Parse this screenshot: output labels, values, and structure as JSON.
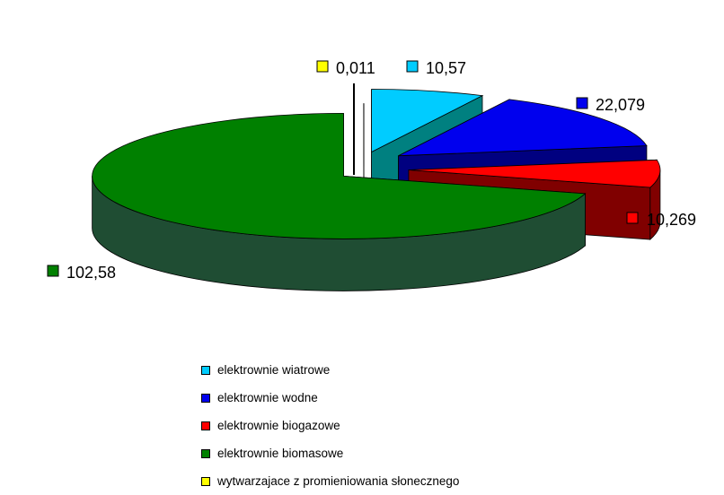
{
  "chart_data": {
    "type": "pie",
    "title": "",
    "categories": [
      "elektrownie wiatrowe",
      "elektrownie wodne",
      "elektrownie biogazowe",
      "elektrownie biomasowe",
      "wytwarzajace z promieniowania słonecznego"
    ],
    "values": [
      10.57,
      22.079,
      10.269,
      102.58,
      0.011
    ],
    "value_labels": [
      "10,57",
      "22,079",
      "10,269",
      "102,58",
      "0,011"
    ],
    "colors": [
      "#00ccff",
      "#0000ee",
      "#ff0000",
      "#008000",
      "#ffff00"
    ],
    "side_colors": [
      "#008080",
      "#000080",
      "#800000",
      "#1f4d33",
      "#808000"
    ],
    "legend_position": "bottom",
    "style": "3d-exploded"
  }
}
